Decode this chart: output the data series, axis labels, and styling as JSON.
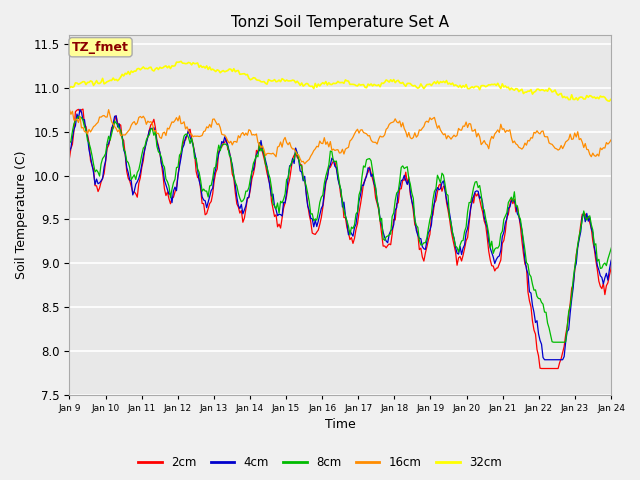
{
  "title": "Tonzi Soil Temperature Set A",
  "xlabel": "Time",
  "ylabel": "Soil Temperature (C)",
  "ylim": [
    7.5,
    11.6
  ],
  "annotation": "TZ_fmet",
  "annotation_color": "#8B0000",
  "annotation_bg": "#FFFF99",
  "fig_bg": "#F0F0F0",
  "plot_bg": "#E8E8E8",
  "line_colors": {
    "2cm": "#FF0000",
    "4cm": "#0000CC",
    "8cm": "#00BB00",
    "16cm": "#FF8C00",
    "32cm": "#FFFF00"
  },
  "x_tick_labels": [
    "Jan 9",
    "Jan 10",
    "Jan 11",
    "Jan 12",
    "Jan 13",
    "Jan 14",
    "Jan 15",
    "Jan 16",
    "Jan 17",
    "Jan 18",
    "Jan 19",
    "Jan 20",
    "Jan 21",
    "Jan 22",
    "Jan 23",
    "Jan 24"
  ],
  "yticks": [
    7.5,
    8.0,
    8.5,
    9.0,
    9.5,
    10.0,
    10.5,
    11.0,
    11.5
  ]
}
